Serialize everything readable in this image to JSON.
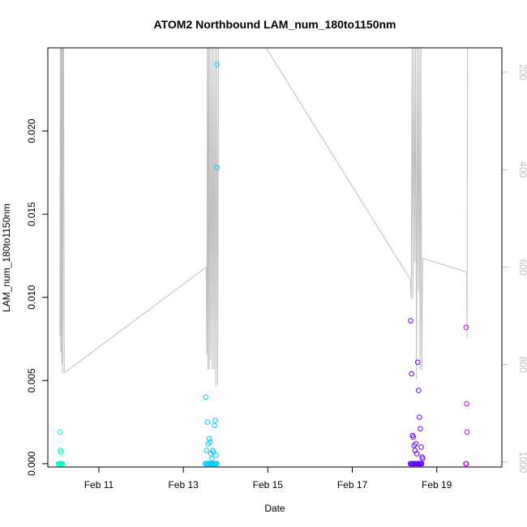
{
  "chart_data": {
    "type": "scatter",
    "title": "ATOM2 Northbound LAM_num_180to1150nm",
    "xlabel": "Date",
    "ylabel": "LAM_num_180to1150nm",
    "xlim": [
      "2021-02-09 19:00",
      "2021-02-20 13:00"
    ],
    "ylim": [
      -0.0002,
      0.025
    ],
    "x_ticks": [
      {
        "date": "2021-02-11",
        "label": "Feb 11"
      },
      {
        "date": "2021-02-13",
        "label": "Feb 13"
      },
      {
        "date": "2021-02-15",
        "label": "Feb 15"
      },
      {
        "date": "2021-02-17",
        "label": "Feb 17"
      },
      {
        "date": "2021-02-19",
        "label": "Feb 19"
      }
    ],
    "y_ticks": [
      {
        "value": 0.0,
        "label": "0.000"
      },
      {
        "value": 0.005,
        "label": "0.005"
      },
      {
        "value": 0.01,
        "label": "0.010"
      },
      {
        "value": 0.015,
        "label": "0.015"
      },
      {
        "value": 0.02,
        "label": "0.020"
      }
    ],
    "y2lim": [
      1010,
      150
    ],
    "y2_ticks": [
      {
        "value": 200,
        "label": "200"
      },
      {
        "value": 400,
        "label": "400"
      },
      {
        "value": 600,
        "label": "600"
      },
      {
        "value": 800,
        "label": "800"
      },
      {
        "value": 1000,
        "label": "1000"
      }
    ],
    "grid": false,
    "legend": "none",
    "line_color": "#bebebe",
    "point_colors": [
      "#00ffcc",
      "#00ccff",
      "#0099ff",
      "#6600ff",
      "#9900ff",
      "#cc00ff",
      "#ff00ff"
    ],
    "secondary_line": {
      "x": [
        "2021-02-10 01:55",
        "2021-02-10 02:05",
        "2021-02-10 02:20",
        "2021-02-10 02:35",
        "2021-02-10 02:50",
        "2021-02-10 03:10",
        "2021-02-10 03:25",
        "2021-02-10 03:40",
        "2021-02-10 03:55",
        "2021-02-10 04:20",
        "2021-02-13 13:00",
        "2021-02-13 13:20",
        "2021-02-13 13:40",
        "2021-02-13 14:00",
        "2021-02-13 14:20",
        "2021-02-13 14:40",
        "2021-02-13 15:00",
        "2021-02-13 15:30",
        "2021-02-13 16:00",
        "2021-02-13 16:30",
        "2021-02-13 17:00",
        "2021-02-13 17:30",
        "2021-02-13 18:00",
        "2021-02-13 18:30",
        "2021-02-13 19:00",
        "2021-02-13 19:30",
        "2021-02-13 20:00",
        "2021-02-14 23:00",
        "2021-02-18 09:00",
        "2021-02-18 09:30",
        "2021-02-18 10:00",
        "2021-02-18 10:30",
        "2021-02-18 11:00",
        "2021-02-18 11:30",
        "2021-02-18 12:00",
        "2021-02-18 12:30",
        "2021-02-18 13:00",
        "2021-02-18 13:30",
        "2021-02-18 14:00",
        "2021-02-18 14:30",
        "2021-02-18 15:00",
        "2021-02-18 15:30",
        "2021-02-18 16:00",
        "2021-02-19 17:00",
        "2021-02-19 17:15",
        "2021-02-19 17:30",
        "2021-02-19 17:45"
      ],
      "y": [
        740,
        145,
        775,
        145,
        800,
        145,
        817,
        145,
        145,
        817,
        600,
        780,
        145,
        810,
        145,
        810,
        145,
        790,
        145,
        810,
        145,
        810,
        150,
        845,
        145,
        840,
        145,
        145,
        625,
        665,
        145,
        665,
        145,
        590,
        145,
        830,
        145,
        650,
        145,
        810,
        145,
        812,
        582,
        610,
        745,
        145,
        145
      ]
    },
    "series": [
      {
        "x": [
          "2021-02-10 01:00",
          "2021-02-10 01:20",
          "2021-02-10 01:40",
          "2021-02-10 02:00",
          "2021-02-10 02:20",
          "2021-02-10 02:40",
          "2021-02-10 03:00",
          "2021-02-10 03:20",
          "2021-02-10 01:50",
          "2021-02-10 02:10",
          "2021-02-10 02:30"
        ],
        "y": [
          0.0,
          0.0,
          0.0,
          0.0,
          0.0,
          0.0,
          0.0,
          0.0,
          0.0019,
          0.0008,
          0.0007
        ],
        "color": "#00ffcc"
      },
      {
        "x": [
          "2021-02-13 12:30",
          "2021-02-13 13:00",
          "2021-02-13 13:30",
          "2021-02-13 14:00",
          "2021-02-13 14:30",
          "2021-02-13 15:00",
          "2021-02-13 15:30",
          "2021-02-13 16:00",
          "2021-02-13 16:30",
          "2021-02-13 17:00",
          "2021-02-13 17:30",
          "2021-02-13 18:00",
          "2021-02-13 18:30",
          "2021-02-13 19:00",
          "2021-02-13 12:40",
          "2021-02-13 13:10",
          "2021-02-13 13:40",
          "2021-02-13 14:10",
          "2021-02-13 14:40",
          "2021-02-13 15:10",
          "2021-02-13 15:40",
          "2021-02-13 16:10",
          "2021-02-13 16:40",
          "2021-02-13 17:10",
          "2021-02-13 17:40",
          "2021-02-13 18:10",
          "2021-02-13 18:40",
          "2021-02-13 19:05",
          "2021-02-13 19:05"
        ],
        "y": [
          0.0,
          0.0,
          0.0,
          0.0,
          0.0,
          0.0,
          0.0,
          0.0,
          0.0,
          0.0,
          0.0,
          0.0,
          0.0,
          0.0,
          0.004,
          0.0008,
          0.0025,
          0.0012,
          0.0015,
          0.0013,
          0.0006,
          0.0003,
          0.0008,
          0.0007,
          0.0023,
          0.0026,
          0.0005,
          0.024,
          0.0178
        ],
        "color": "#00ccff"
      },
      {
        "x": [
          "2021-02-18 09:00",
          "2021-02-18 09:30",
          "2021-02-18 10:00",
          "2021-02-18 10:30",
          "2021-02-18 11:00",
          "2021-02-18 11:30",
          "2021-02-18 12:00",
          "2021-02-18 12:30",
          "2021-02-18 13:00",
          "2021-02-18 13:30",
          "2021-02-18 14:00",
          "2021-02-18 14:30",
          "2021-02-18 15:00",
          "2021-02-18 15:30",
          "2021-02-18 09:10",
          "2021-02-18 09:40",
          "2021-02-18 10:10",
          "2021-02-18 10:40",
          "2021-02-18 11:10",
          "2021-02-18 11:40",
          "2021-02-18 12:10",
          "2021-02-18 12:40",
          "2021-02-18 13:10",
          "2021-02-18 13:40",
          "2021-02-18 14:10",
          "2021-02-18 14:40",
          "2021-02-18 15:10",
          "2021-02-18 15:40",
          "2021-02-18 16:00"
        ],
        "y": [
          0.0,
          0.0,
          0.0,
          0.0,
          0.0,
          0.0,
          0.0,
          0.0,
          0.0,
          0.0,
          0.0,
          0.0,
          0.0,
          0.0,
          0.0086,
          0.0054,
          0.0017,
          0.0016,
          0.0011,
          0.0008,
          0.0012,
          0.0006,
          0.0061,
          0.0044,
          0.0028,
          0.0021,
          0.001,
          0.0004,
          0.0003
        ],
        "color": "#6600ff"
      },
      {
        "x": [
          "2021-02-19 16:30",
          "2021-02-19 16:50",
          "2021-02-19 16:40",
          "2021-02-19 17:00",
          "2021-02-19 17:10"
        ],
        "y": [
          0.0,
          0.0,
          0.0082,
          0.0036,
          0.0019
        ],
        "color": "#cc00ff"
      }
    ]
  }
}
